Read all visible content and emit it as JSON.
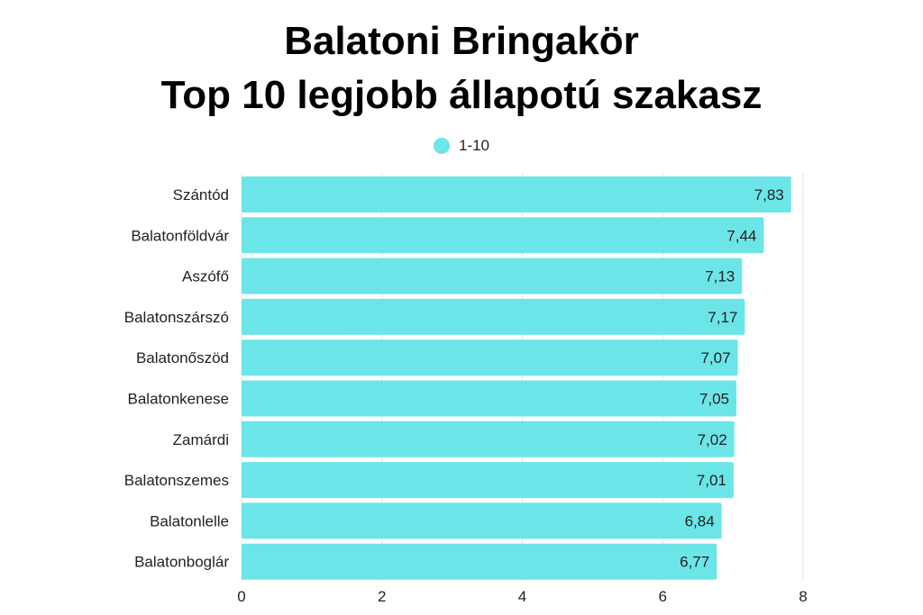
{
  "chart_data": {
    "type": "bar",
    "orientation": "horizontal",
    "title_line1": "Balatoni Bringakör",
    "title_line2": "Top 10 legjobb állapotú szakasz",
    "legend": {
      "label": "1-10",
      "placement": "top-center"
    },
    "categories": [
      "Szántód",
      "Balatonföldvár",
      "Aszófő",
      "Balatonszárszó",
      "Balatonőszöd",
      "Balatonkenese",
      "Zamárdi",
      "Balatonszemes",
      "Balatonlelle",
      "Balatonboglár"
    ],
    "values": [
      7.83,
      7.44,
      7.13,
      7.17,
      7.07,
      7.05,
      7.02,
      7.01,
      6.84,
      6.77
    ],
    "value_labels": [
      "7,83",
      "7,44",
      "7,13",
      "7,17",
      "7,07",
      "7,05",
      "7,02",
      "7,01",
      "6,84",
      "6,77"
    ],
    "xticks": [
      0,
      2,
      4,
      6,
      8
    ],
    "xlim": [
      0,
      8
    ],
    "grid": "vertical",
    "bar_color": "#6ce5e8"
  }
}
